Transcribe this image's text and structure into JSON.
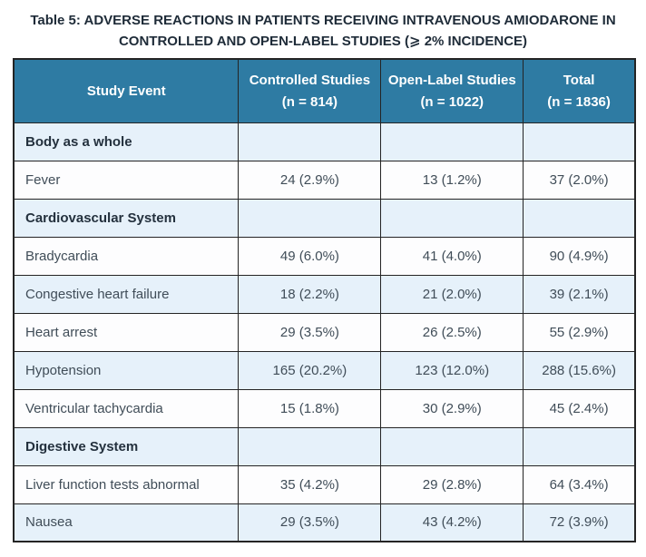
{
  "caption": {
    "line1": "Table 5: ADVERSE REACTIONS IN PATIENTS RECEIVING INTRAVENOUS AMIODARONE IN",
    "line2": "CONTROLLED AND OPEN-LABEL STUDIES (⩾ 2% INCIDENCE)"
  },
  "colors": {
    "header_background": "#2e7ba3",
    "header_text": "#ffffff",
    "row_light_blue": "#e6f1fa",
    "row_white": "#fdfdfe",
    "border": "#242424",
    "caption_text": "#1e2b38",
    "body_text": "#404d58"
  },
  "table": {
    "columns": [
      {
        "label": "Study Event",
        "sub": ""
      },
      {
        "label": "Controlled Studies",
        "sub": "(n = 814)"
      },
      {
        "label": "Open-Label Studies",
        "sub": "(n = 1022)"
      },
      {
        "label": "Total",
        "sub": "(n = 1836)"
      }
    ],
    "rows": [
      {
        "type": "section",
        "label": "Body as a whole",
        "controlled": "",
        "open_label": "",
        "total": ""
      },
      {
        "type": "data",
        "label": "Fever",
        "controlled": "24 (2.9%)",
        "open_label": "13 (1.2%)",
        "total": "37 (2.0%)"
      },
      {
        "type": "section",
        "label": "Cardiovascular System",
        "controlled": "",
        "open_label": "",
        "total": ""
      },
      {
        "type": "data",
        "label": "Bradycardia",
        "controlled": "49 (6.0%)",
        "open_label": "41 (4.0%)",
        "total": "90 (4.9%)"
      },
      {
        "type": "data",
        "label": "Congestive heart failure",
        "controlled": "18 (2.2%)",
        "open_label": "21 (2.0%)",
        "total": "39 (2.1%)"
      },
      {
        "type": "data",
        "label": "Heart arrest",
        "controlled": "29 (3.5%)",
        "open_label": "26 (2.5%)",
        "total": "55 (2.9%)"
      },
      {
        "type": "data",
        "label": "Hypotension",
        "controlled": "165 (20.2%)",
        "open_label": "123 (12.0%)",
        "total": "288 (15.6%)"
      },
      {
        "type": "data",
        "label": "Ventricular tachycardia",
        "controlled": "15 (1.8%)",
        "open_label": "30 (2.9%)",
        "total": "45 (2.4%)"
      },
      {
        "type": "section",
        "label": "Digestive System",
        "controlled": "",
        "open_label": "",
        "total": ""
      },
      {
        "type": "data",
        "label": "Liver function tests abnormal",
        "controlled": "35 (4.2%)",
        "open_label": "29 (2.8%)",
        "total": "64 (3.4%)"
      },
      {
        "type": "data",
        "label": "Nausea",
        "controlled": "29 (3.5%)",
        "open_label": "43 (4.2%)",
        "total": "72 (3.9%)"
      }
    ]
  }
}
